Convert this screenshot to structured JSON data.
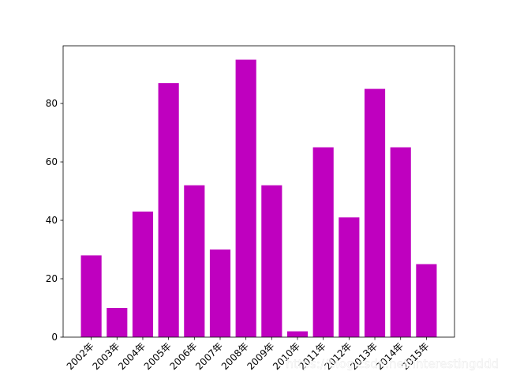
{
  "chart_data": {
    "type": "bar",
    "categories": [
      "2002年",
      "2003年",
      "2004年",
      "2005年",
      "2006年",
      "2007年",
      "2008年",
      "2009年",
      "2010年",
      "2011年",
      "2012年",
      "2013年",
      "2014年",
      "2015年"
    ],
    "values": [
      28,
      10,
      43,
      87,
      52,
      30,
      95,
      52,
      2,
      65,
      41,
      85,
      65,
      25
    ],
    "color": "#bf00bf",
    "ylim": [
      0,
      99.75
    ],
    "yticks": [
      0,
      20,
      40,
      60,
      80
    ],
    "grid": false,
    "watermark": "https://blog.csdn.net/interestingddd"
  }
}
